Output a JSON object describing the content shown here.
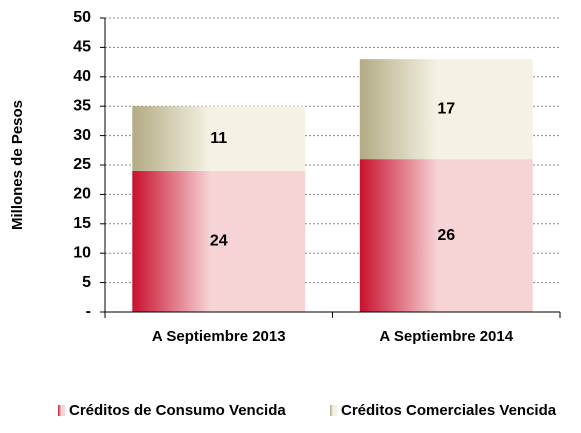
{
  "chart_data": {
    "type": "stacked_bar",
    "y_label": "Millones de Pesos",
    "categories": [
      "A Septiembre 2013",
      "A Septiembre 2014"
    ],
    "series": [
      {
        "name": "Créditos de Consumo Vencida",
        "color": "#c8102e",
        "values": [
          24,
          26
        ]
      },
      {
        "name": "Créditos Comerciales Vencida",
        "color": "#b3ab84",
        "values": [
          11,
          17
        ]
      }
    ],
    "ylim": [
      0,
      50
    ],
    "yticks": [
      {
        "value": 0,
        "label": "-"
      },
      5,
      10,
      15,
      20,
      25,
      30,
      35,
      40,
      45,
      50
    ],
    "grid": true,
    "legend": "bottom"
  }
}
